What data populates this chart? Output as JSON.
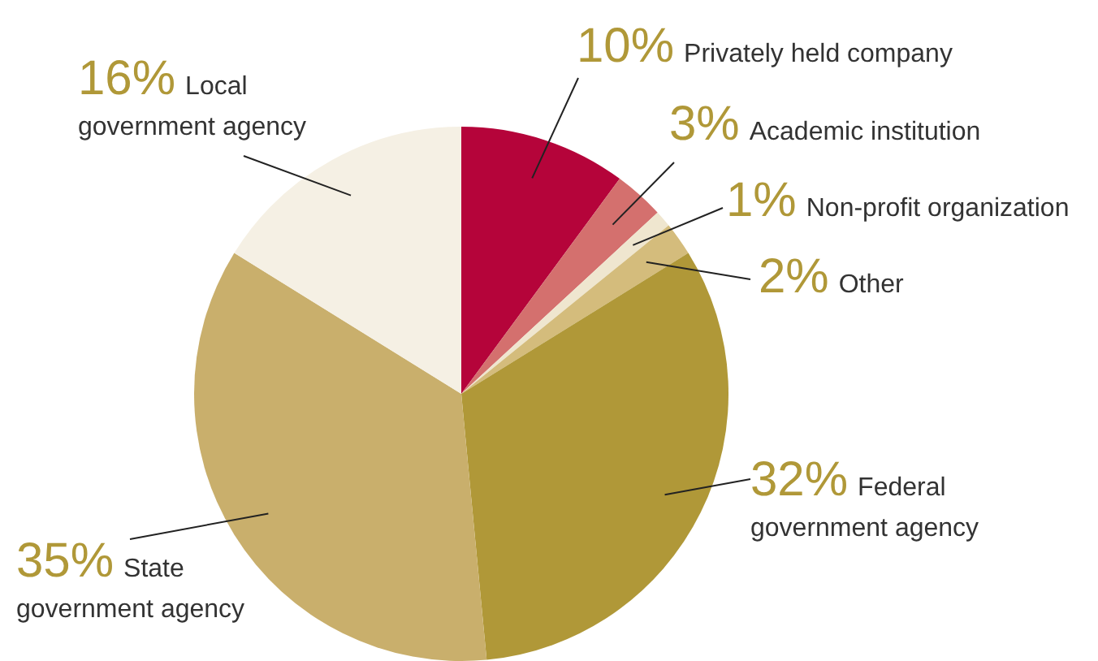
{
  "chart_data": {
    "type": "pie",
    "categories": [
      "Privately held company",
      "Academic institution",
      "Non-profit organization",
      "Other",
      "Federal government agency",
      "State government agency",
      "Local government agency"
    ],
    "values": [
      10,
      3,
      1,
      2,
      32,
      35,
      16
    ],
    "value_labels": [
      "10%",
      "3%",
      "1%",
      "2%",
      "32%",
      "35%",
      "16%"
    ],
    "colors": [
      "#b5043a",
      "#d4706e",
      "#efe6cf",
      "#d4bc7c",
      "#b09838",
      "#c9af6c",
      "#f5f0e4"
    ],
    "legend": false
  }
}
